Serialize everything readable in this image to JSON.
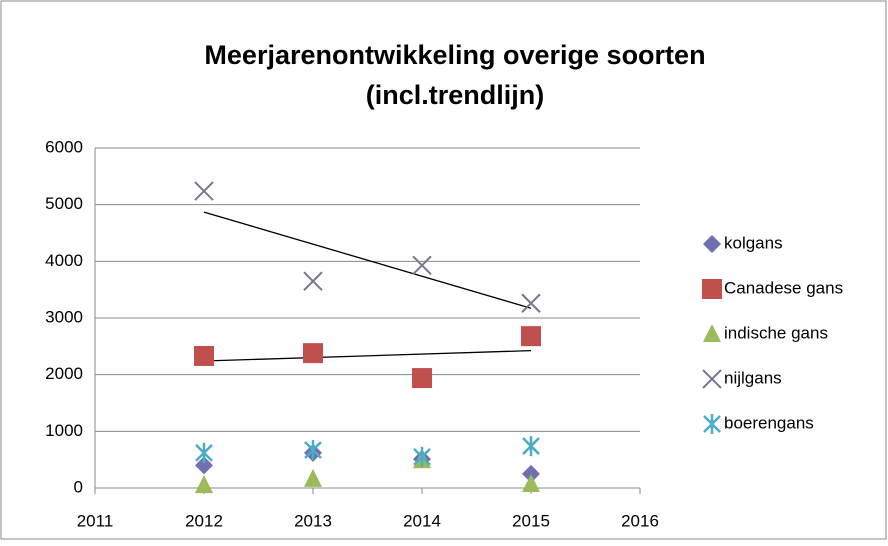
{
  "chart_data": {
    "type": "scatter",
    "title": "Meerjarenontwikkeling overige soorten",
    "subtitle": "(incl.trendlijn)",
    "x": [
      2012,
      2013,
      2014,
      2015
    ],
    "xlim": [
      2011,
      2016
    ],
    "xticks": [
      2011,
      2012,
      2013,
      2014,
      2015,
      2016
    ],
    "ylim": [
      0,
      6000
    ],
    "yticks": [
      0,
      1000,
      2000,
      3000,
      4000,
      5000,
      6000
    ],
    "grid": true,
    "legend": "right",
    "series": [
      {
        "name": "kolgans",
        "color": "#7070b0",
        "marker": "diamond",
        "values": [
          400,
          620,
          510,
          250
        ]
      },
      {
        "name": "Canadese gans",
        "color": "#c0504d",
        "marker": "square",
        "values": [
          2330,
          2380,
          1940,
          2680
        ],
        "trendline": true
      },
      {
        "name": "indische gans",
        "color": "#9bbb59",
        "marker": "triangle",
        "values": [
          50,
          160,
          490,
          70
        ]
      },
      {
        "name": "nijlgans",
        "color": "#7a7590",
        "marker": "x",
        "values": [
          5240,
          3650,
          3930,
          3260
        ],
        "trendline": true
      },
      {
        "name": "boerengans",
        "color": "#4bacc6",
        "marker": "asterisk",
        "values": [
          620,
          670,
          550,
          740
        ]
      }
    ]
  }
}
